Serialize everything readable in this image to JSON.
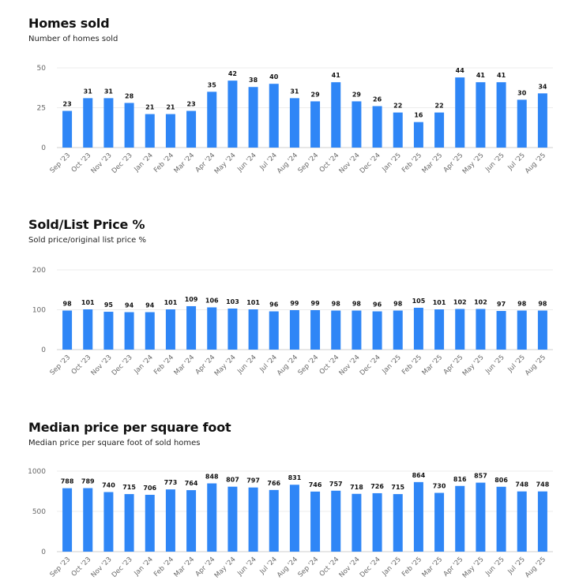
{
  "chart_data": [
    {
      "type": "bar",
      "title": "Homes sold",
      "subtitle": "Number of homes sold",
      "categories": [
        "Sep '23",
        "Oct '23",
        "Nov '23",
        "Dec '23",
        "Jan '24",
        "Feb '24",
        "Mar '24",
        "Apr '24",
        "May '24",
        "Jun '24",
        "Jul '24",
        "Aug '24",
        "Sep '24",
        "Oct '24",
        "Nov '24",
        "Dec '24",
        "Jan '25",
        "Feb '25",
        "Mar '25",
        "Apr '25",
        "May '25",
        "Jun '25",
        "Jul '25",
        "Aug '25"
      ],
      "values": [
        23,
        31,
        31,
        28,
        21,
        21,
        23,
        35,
        42,
        38,
        40,
        31,
        29,
        41,
        29,
        26,
        22,
        16,
        22,
        44,
        41,
        41,
        30,
        34
      ],
      "yticks": [
        0,
        25,
        50
      ],
      "ylim": [
        0,
        50
      ],
      "grid": true,
      "color": "#2f86f6"
    },
    {
      "type": "bar",
      "title": "Sold/List Price %",
      "subtitle": "Sold price/original list price %",
      "categories": [
        "Sep '23",
        "Oct '23",
        "Nov '23",
        "Dec '23",
        "Jan '24",
        "Feb '24",
        "Mar '24",
        "Apr '24",
        "May '24",
        "Jun '24",
        "Jul '24",
        "Aug '24",
        "Sep '24",
        "Oct '24",
        "Nov '24",
        "Dec '24",
        "Jan '25",
        "Feb '25",
        "Mar '25",
        "Apr '25",
        "May '25",
        "Jun '25",
        "Jul '25",
        "Aug '25"
      ],
      "values": [
        98,
        101,
        95,
        94,
        94,
        101,
        109,
        106,
        103,
        101,
        96,
        99,
        99,
        98,
        98,
        96,
        98,
        105,
        101,
        102,
        102,
        97,
        98,
        98
      ],
      "yticks": [
        0,
        100,
        200
      ],
      "ylim": [
        0,
        200
      ],
      "grid": true,
      "color": "#2f86f6"
    },
    {
      "type": "bar",
      "title": "Median price per square foot",
      "subtitle": "Median price per square foot of sold homes",
      "categories": [
        "Sep '23",
        "Oct '23",
        "Nov '23",
        "Dec '23",
        "Jan '24",
        "Feb '24",
        "Mar '24",
        "Apr '24",
        "May '24",
        "Jun '24",
        "Jul '24",
        "Aug '24",
        "Sep '24",
        "Oct '24",
        "Nov '24",
        "Dec '24",
        "Jan '25",
        "Feb '25",
        "Mar '25",
        "Apr '25",
        "May '25",
        "Jun '25",
        "Jul '25",
        "Aug '25"
      ],
      "values": [
        788,
        789,
        740,
        715,
        706,
        773,
        764,
        848,
        807,
        797,
        766,
        831,
        746,
        757,
        718,
        726,
        715,
        864,
        730,
        816,
        857,
        806,
        748,
        748
      ],
      "yticks": [
        0,
        500,
        1000
      ],
      "ylim": [
        0,
        1000
      ],
      "grid": true,
      "color": "#2f86f6"
    }
  ]
}
